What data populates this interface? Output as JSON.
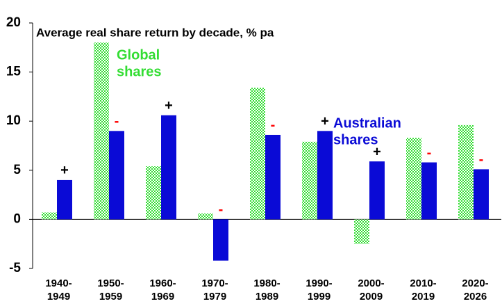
{
  "chart_data": {
    "type": "bar",
    "title": "Average real share return by decade,  % pa",
    "categories": [
      [
        "1940-",
        "1949"
      ],
      [
        "1950-",
        "1959"
      ],
      [
        "1960-",
        "1969"
      ],
      [
        "1970-",
        "1979"
      ],
      [
        "1980-",
        "1989"
      ],
      [
        "1990-",
        "1999"
      ],
      [
        "2000-",
        "2009"
      ],
      [
        "2010-",
        "2019"
      ],
      [
        "2020-",
        "2026"
      ]
    ],
    "series": [
      {
        "name": [
          "Global",
          "shares"
        ],
        "color": "#33dd33",
        "values": [
          0.7,
          18,
          5.4,
          0.6,
          13.4,
          7.9,
          -2.5,
          8.3,
          9.6
        ]
      },
      {
        "name": [
          "Australian",
          "shares"
        ],
        "color": "#0a0ad6",
        "values": [
          4.0,
          9.0,
          10.6,
          -4.2,
          8.6,
          9.0,
          5.9,
          5.8,
          5.1
        ],
        "annotations": [
          {
            "text": "+",
            "color": "#000000"
          },
          {
            "text": "-",
            "color": "#ff0000"
          },
          {
            "text": "+",
            "color": "#000000"
          },
          {
            "text": "-",
            "color": "#ff0000"
          },
          {
            "text": "-",
            "color": "#ff0000"
          },
          {
            "text": "+",
            "color": "#000000"
          },
          {
            "text": "+",
            "color": "#000000"
          },
          {
            "text": "-",
            "color": "#ff0000"
          },
          {
            "text": "-",
            "color": "#ff0000"
          }
        ]
      }
    ],
    "ylim": [
      -5,
      20
    ],
    "yticks": [
      -5,
      0,
      5,
      10,
      15,
      20
    ]
  }
}
